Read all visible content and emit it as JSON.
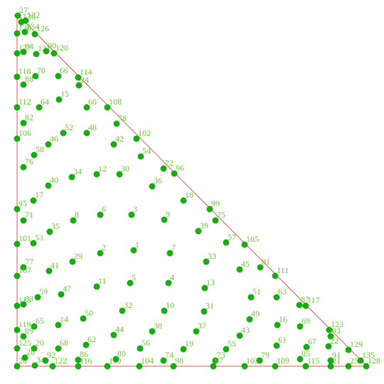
{
  "chart_data": {
    "type": "scatter",
    "color": "#1aaa12",
    "label_color": "#66cc33",
    "edge_color": "#e8584a",
    "xlim": [
      -10,
      500
    ],
    "ylim": [
      -10,
      500
    ],
    "labels": [
      "27",
      "136",
      "132",
      "130",
      "134",
      "126",
      "127",
      "94",
      "121",
      "90",
      "120",
      "118",
      "88",
      "70",
      "66",
      "114",
      "24",
      "112",
      "64",
      "15",
      "60",
      "108",
      "82",
      "78",
      "106",
      "52",
      "48",
      "102",
      "46",
      "42",
      "58",
      "54",
      "76",
      "72",
      "96",
      "40",
      "34",
      "12",
      "30",
      "36",
      "17",
      "18",
      "95",
      "71",
      "8",
      "6",
      "3",
      "9",
      "99",
      "75",
      "35",
      "39",
      "101",
      "53",
      "57",
      "105",
      "29",
      "2",
      "1",
      "7",
      "33",
      "77",
      "107",
      "41",
      "45",
      "81",
      "111",
      "11",
      "5",
      "4",
      "13",
      "47",
      "59",
      "51",
      "63",
      "87",
      "117",
      "113",
      "83",
      "10",
      "31",
      "32",
      "50",
      "49",
      "16",
      "69",
      "14",
      "65",
      "119",
      "89",
      "38",
      "37",
      "44",
      "43",
      "123",
      "93",
      "62",
      "68",
      "20",
      "125",
      "61",
      "67",
      "22",
      "129",
      "56",
      "19",
      "55",
      "73",
      "28",
      "26",
      "34",
      "92",
      "122",
      "86",
      "116",
      "110",
      "80",
      "104",
      "74",
      "98",
      "97",
      "103",
      "79",
      "109",
      "85",
      "115",
      "91",
      "21",
      "25",
      "135",
      "128"
    ],
    "x": [
      1,
      6,
      12,
      0,
      11,
      25,
      0,
      9,
      27,
      41,
      52,
      0,
      9,
      26,
      58,
      86,
      87,
      0,
      31,
      59,
      98,
      127,
      9,
      140,
      0,
      65,
      98,
      168,
      44,
      136,
      24,
      174,
      9,
      206,
      221,
      44,
      77,
      112,
      144,
      190,
      23,
      234,
      0,
      9,
      79,
      117,
      161,
      207,
      271,
      279,
      46,
      255,
      0,
      23,
      294,
      320,
      78,
      117,
      164,
      215,
      266,
      9,
      0,
      45,
      313,
      342,
      363,
      112,
      159,
      213,
      264,
      62,
      29,
      329,
      365,
      397,
      406,
      0,
      9,
      207,
      263,
      148,
      93,
      327,
      366,
      398,
      58,
      24,
      0,
      9,
      190,
      252,
      136,
      313,
      439,
      441,
      97,
      58,
      24,
      0,
      365,
      407,
      438,
      466,
      173,
      234,
      294,
      279,
      0,
      11,
      25,
      40,
      50,
      86,
      86,
      127,
      139,
      172,
      206,
      220,
      276,
      320,
      341,
      363,
      398,
      406,
      441,
      441,
      466,
      483,
      491
    ],
    "y": [
      490,
      481,
      483,
      465,
      467,
      464,
      437,
      439,
      436,
      440,
      437,
      404,
      393,
      405,
      405,
      403,
      392,
      361,
      361,
      372,
      361,
      361,
      339,
      338,
      317,
      325,
      325,
      317,
      309,
      309,
      294,
      292,
      277,
      275,
      268,
      251,
      263,
      267,
      267,
      250,
      230,
      230,
      218,
      202,
      202,
      210,
      210,
      203,
      218,
      202,
      186,
      187,
      169,
      170,
      171,
      168,
      144,
      156,
      160,
      156,
      144,
      136,
      124,
      131,
      133,
      136,
      124,
      109,
      114,
      114,
      107,
      98,
      94,
      94,
      94,
      83,
      82,
      82,
      84,
      75,
      74,
      75,
      64,
      63,
      55,
      53,
      55,
      53,
      48,
      39,
      46,
      46,
      41,
      40,
      48,
      39,
      27,
      22,
      22,
      22,
      26,
      24,
      25,
      20,
      22,
      21,
      21,
      5,
      -3,
      9,
      -2,
      5,
      -3,
      6,
      -3,
      -3,
      7,
      -3,
      5,
      -3,
      -3,
      -3,
      5,
      -3,
      7,
      -3,
      5,
      -3,
      -3,
      5,
      -3
    ]
  }
}
